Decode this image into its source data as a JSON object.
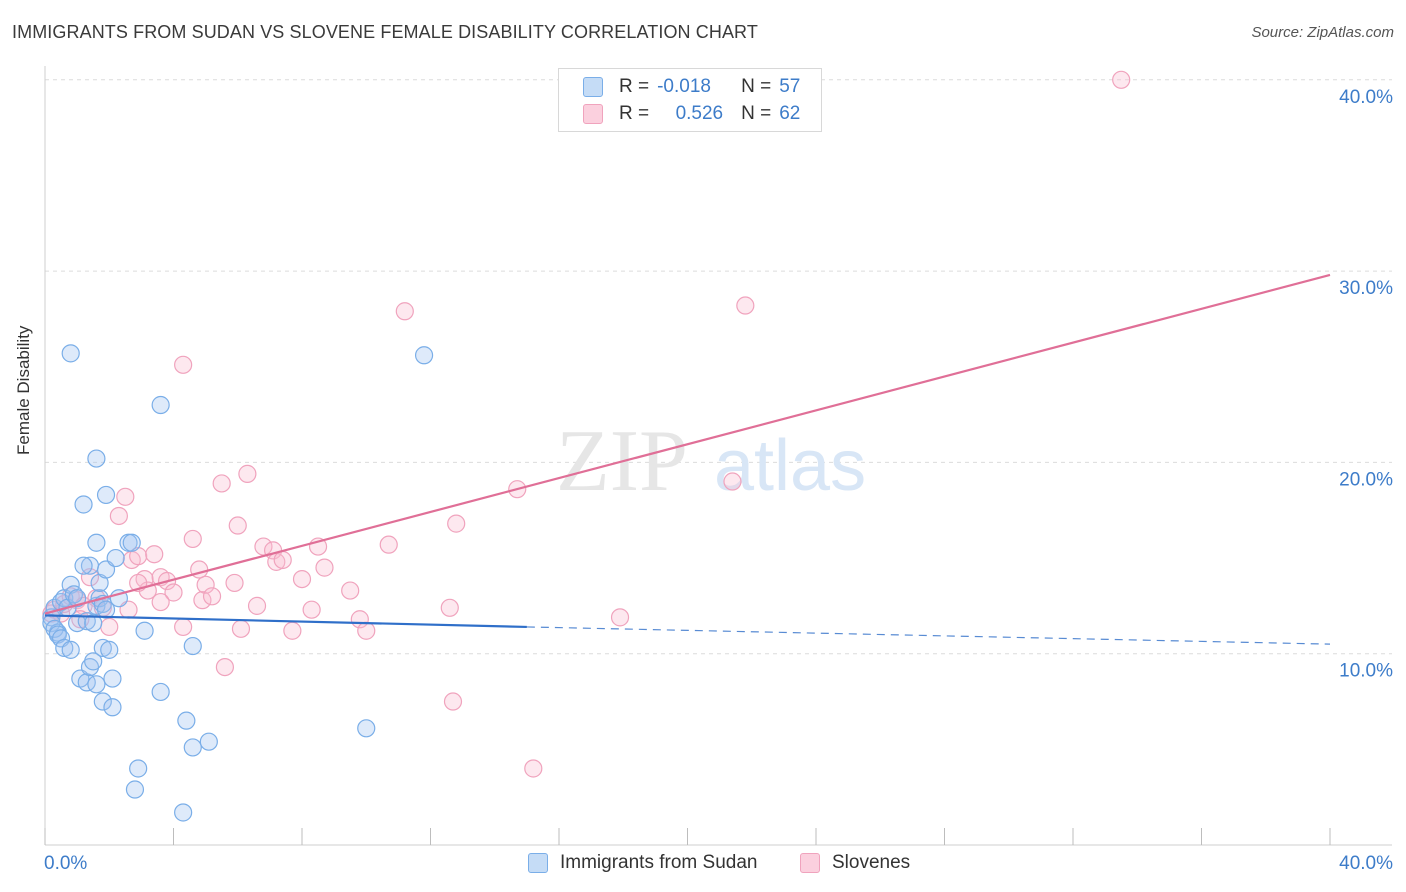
{
  "title": "IMMIGRANTS FROM SUDAN VS SLOVENE FEMALE DISABILITY CORRELATION CHART",
  "source": "Source: ZipAtlas.com",
  "watermark": {
    "zip": "ZIP",
    "atlas": "atlas"
  },
  "legend": [
    {
      "r_label": "R =",
      "r_value": "-0.018",
      "n_label": "N =",
      "n_value": "57"
    },
    {
      "r_label": "R =",
      "r_value": "0.526",
      "n_label": "N =",
      "n_value": "62"
    }
  ],
  "chart_data": {
    "type": "scatter",
    "title": "IMMIGRANTS FROM SUDAN VS SLOVENE FEMALE DISABILITY CORRELATION CHART",
    "xlabel": "",
    "ylabel": "Female Disability",
    "xlim": [
      0,
      40
    ],
    "ylim": [
      0,
      41.5
    ],
    "x_tick_labels": [
      "0.0%",
      "40.0%"
    ],
    "y_ticks": [
      10,
      20,
      30,
      40
    ],
    "y_tick_labels": [
      "10.0%",
      "20.0%",
      "30.0%",
      "40.0%"
    ],
    "grid": true,
    "legend_position": "top-center",
    "colors": {
      "sudan": "#7aaee8",
      "sudan_line": "#2f6fc9",
      "slovenes": "#f0a3bd",
      "slovenes_line": "#e06f97",
      "tick_text": "#3d7cc9"
    },
    "series": [
      {
        "name": "Immigrants from Sudan",
        "r": -0.018,
        "n": 57,
        "trend": {
          "x": [
            0,
            15
          ],
          "y": [
            12.0,
            11.4
          ],
          "dashed_to": [
            40,
            10.5
          ]
        },
        "points": [
          [
            0.2,
            11.9
          ],
          [
            0.3,
            12.4
          ],
          [
            0.2,
            11.6
          ],
          [
            0.4,
            11.1
          ],
          [
            0.5,
            12.7
          ],
          [
            0.6,
            12.9
          ],
          [
            0.7,
            12.4
          ],
          [
            0.8,
            13.6
          ],
          [
            0.9,
            13.1
          ],
          [
            1.0,
            12.9
          ],
          [
            0.3,
            11.3
          ],
          [
            0.4,
            11.0
          ],
          [
            0.5,
            10.8
          ],
          [
            0.6,
            10.3
          ],
          [
            0.8,
            10.2
          ],
          [
            1.0,
            11.6
          ],
          [
            1.3,
            11.7
          ],
          [
            1.5,
            11.6
          ],
          [
            1.6,
            12.5
          ],
          [
            1.7,
            12.9
          ],
          [
            1.8,
            12.6
          ],
          [
            1.4,
            14.6
          ],
          [
            1.2,
            14.6
          ],
          [
            1.7,
            13.7
          ],
          [
            1.9,
            14.4
          ],
          [
            2.2,
            15.0
          ],
          [
            2.6,
            15.8
          ],
          [
            2.7,
            15.8
          ],
          [
            1.6,
            15.8
          ],
          [
            1.2,
            17.8
          ],
          [
            1.6,
            20.2
          ],
          [
            1.9,
            18.3
          ],
          [
            0.8,
            25.7
          ],
          [
            3.6,
            23.0
          ],
          [
            11.8,
            25.6
          ],
          [
            1.1,
            8.7
          ],
          [
            1.3,
            8.5
          ],
          [
            1.4,
            9.3
          ],
          [
            1.5,
            9.6
          ],
          [
            1.6,
            8.4
          ],
          [
            1.8,
            10.3
          ],
          [
            2.0,
            10.2
          ],
          [
            2.1,
            8.7
          ],
          [
            1.8,
            7.5
          ],
          [
            2.1,
            7.2
          ],
          [
            3.1,
            11.2
          ],
          [
            3.6,
            8.0
          ],
          [
            4.4,
            6.5
          ],
          [
            4.6,
            5.1
          ],
          [
            5.1,
            5.4
          ],
          [
            2.9,
            4.0
          ],
          [
            2.8,
            2.9
          ],
          [
            4.3,
            1.7
          ],
          [
            4.6,
            10.4
          ],
          [
            10.0,
            6.1
          ],
          [
            2.3,
            12.9
          ],
          [
            1.9,
            12.3
          ]
        ]
      },
      {
        "name": "Slovenes",
        "r": 0.526,
        "n": 62,
        "trend": {
          "x": [
            0,
            40
          ],
          "y": [
            12.1,
            29.8
          ]
        },
        "points": [
          [
            0.2,
            12.1
          ],
          [
            0.3,
            12.3
          ],
          [
            0.5,
            12.1
          ],
          [
            0.6,
            12.6
          ],
          [
            0.8,
            13.0
          ],
          [
            1.0,
            12.8
          ],
          [
            1.2,
            12.5
          ],
          [
            1.4,
            14.0
          ],
          [
            1.6,
            12.9
          ],
          [
            1.8,
            12.4
          ],
          [
            2.0,
            11.4
          ],
          [
            2.3,
            17.2
          ],
          [
            2.5,
            18.2
          ],
          [
            2.6,
            12.3
          ],
          [
            2.7,
            14.9
          ],
          [
            2.9,
            15.1
          ],
          [
            3.1,
            13.9
          ],
          [
            3.2,
            13.3
          ],
          [
            3.4,
            15.2
          ],
          [
            3.6,
            14.0
          ],
          [
            3.8,
            13.8
          ],
          [
            4.0,
            13.2
          ],
          [
            4.3,
            11.4
          ],
          [
            4.6,
            16.0
          ],
          [
            4.8,
            14.4
          ],
          [
            4.9,
            12.8
          ],
          [
            5.0,
            13.6
          ],
          [
            5.2,
            13.0
          ],
          [
            5.5,
            18.9
          ],
          [
            5.6,
            9.3
          ],
          [
            5.9,
            13.7
          ],
          [
            6.0,
            16.7
          ],
          [
            6.1,
            11.3
          ],
          [
            6.3,
            19.4
          ],
          [
            6.6,
            12.5
          ],
          [
            6.8,
            15.6
          ],
          [
            7.1,
            15.4
          ],
          [
            7.2,
            14.8
          ],
          [
            7.4,
            14.9
          ],
          [
            7.7,
            11.2
          ],
          [
            8.0,
            13.9
          ],
          [
            8.3,
            12.3
          ],
          [
            8.5,
            15.6
          ],
          [
            8.7,
            14.5
          ],
          [
            9.5,
            13.3
          ],
          [
            9.8,
            11.8
          ],
          [
            10.0,
            11.2
          ],
          [
            10.7,
            15.7
          ],
          [
            11.2,
            27.9
          ],
          [
            12.6,
            12.4
          ],
          [
            12.7,
            7.5
          ],
          [
            12.8,
            16.8
          ],
          [
            14.7,
            18.6
          ],
          [
            15.2,
            4.0
          ],
          [
            17.9,
            11.9
          ],
          [
            21.4,
            19.0
          ],
          [
            21.8,
            28.2
          ],
          [
            33.5,
            40.0
          ],
          [
            4.3,
            25.1
          ],
          [
            3.6,
            12.7
          ],
          [
            2.9,
            13.7
          ],
          [
            1.1,
            11.8
          ]
        ]
      }
    ]
  },
  "bottom_legend": [
    {
      "label": "Immigrants from Sudan"
    },
    {
      "label": "Slovenes"
    }
  ]
}
